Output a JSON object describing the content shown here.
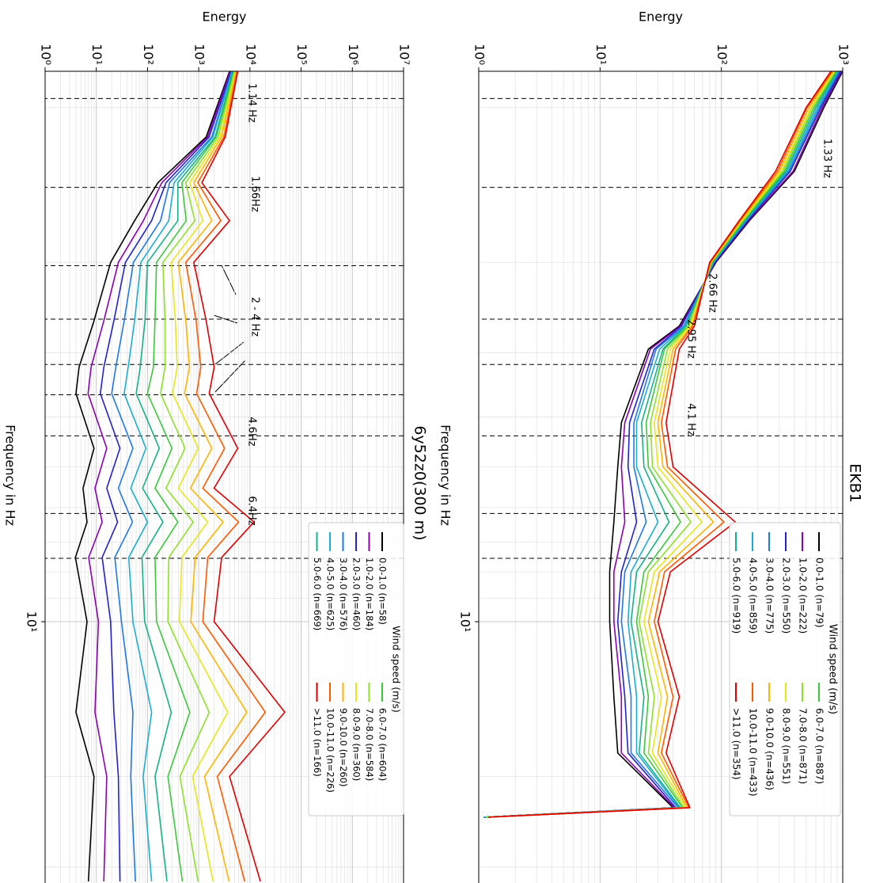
{
  "chart_data": [
    {
      "type": "line",
      "title": "EKB1",
      "xlabel": "Frequency in Hz",
      "ylabel": "Energy",
      "xscale": "log",
      "yscale": "log",
      "xlim": [
        0.85,
        32
      ],
      "ylim": [
        1,
        1000
      ],
      "xticks": [
        {
          "value": 10,
          "label": "10¹"
        }
      ],
      "yticks": [
        {
          "value": 1,
          "label": "10⁰"
        },
        {
          "value": 10,
          "label": "10¹"
        },
        {
          "value": 100,
          "label": "10²"
        },
        {
          "value": 1000,
          "label": "10³"
        }
      ],
      "xminor": [
        1,
        2,
        3,
        4,
        5,
        6,
        7,
        8,
        9,
        20,
        30
      ],
      "yminor": [
        2,
        3,
        4,
        5,
        6,
        7,
        8,
        9,
        20,
        30,
        40,
        50,
        60,
        70,
        80,
        90,
        200,
        300,
        400,
        500,
        600,
        700,
        800,
        900
      ],
      "grid": true,
      "vlines": [
        0.96,
        1.43,
        2.58,
        3.16,
        4.35,
        6.16,
        7.53
      ],
      "annotations": [
        "1.33 Hz",
        "2.66 Hz",
        "2.95 Hz",
        "4.1 Hz"
      ],
      "legend_title": "Wind speed (m/s)",
      "legend_loc": "upper right",
      "x": [
        0.85,
        1,
        1.33,
        1.66,
        2,
        2.66,
        2.95,
        4.1,
        5,
        6.4,
        8,
        10,
        14,
        18,
        23,
        24
      ],
      "series": [
        {
          "name": "0.0-1.0 (n=79)",
          "color": "#000000",
          "values": [
            1000,
            700,
            400,
            170,
            90,
            45,
            25,
            15,
            14,
            13,
            12,
            12,
            13,
            14,
            40,
            1.1
          ]
        },
        {
          "name": "1.0-2.0 (n=222)",
          "color": "#8b00b0",
          "values": [
            980,
            680,
            390,
            167,
            89,
            46,
            26,
            16,
            15,
            16,
            13,
            13,
            15,
            15,
            41,
            1.1
          ]
        },
        {
          "name": "2.0-3.0 (n=550)",
          "color": "#2222c8",
          "values": [
            960,
            660,
            370,
            164,
            88,
            47,
            28,
            17.5,
            17,
            20,
            15,
            14,
            16,
            17,
            42,
            1.1
          ]
        },
        {
          "name": "3.0-4.0 (n=775)",
          "color": "#1e78e6",
          "values": [
            940,
            640,
            360,
            161,
            87,
            49,
            29,
            19,
            19,
            24,
            16,
            15,
            18,
            18,
            44,
            1.1
          ]
        },
        {
          "name": "4.0-5.0 (n=859)",
          "color": "#1aaed0",
          "values": [
            920,
            620,
            350,
            158,
            86,
            50,
            31,
            20,
            20,
            30,
            18,
            17,
            20,
            20,
            45,
            1.1
          ]
        },
        {
          "name": "5.0-6.0 (n=919)",
          "color": "#17b08a",
          "values": [
            900,
            600,
            340,
            156,
            85,
            51,
            33,
            22,
            23,
            37,
            20,
            18,
            23,
            21,
            46,
            1.15
          ]
        },
        {
          "name": "6.0-7.0 (n=887)",
          "color": "#3cc83c",
          "values": [
            890,
            580,
            330,
            153,
            84,
            53,
            34,
            24,
            25,
            46,
            23,
            20,
            25,
            23,
            48,
            1.15
          ]
        },
        {
          "name": "7.0-8.0 (n=871)",
          "color": "#8ee02a",
          "values": [
            870,
            560,
            320,
            150,
            83,
            54,
            36,
            26,
            27,
            56,
            25,
            21,
            28,
            25,
            49,
            1.15
          ]
        },
        {
          "name": "8.0-9.0 (n=551)",
          "color": "#e6e61a",
          "values": [
            850,
            550,
            310,
            148,
            82,
            55,
            38,
            28,
            30,
            69,
            28,
            23,
            32,
            27,
            51,
            1.2
          ]
        },
        {
          "name": "9.0-10.0 (n=436)",
          "color": "#ffb400",
          "values": [
            830,
            530,
            300,
            145,
            82,
            57,
            40,
            30,
            33,
            86,
            31,
            25,
            36,
            30,
            52,
            1.2
          ]
        },
        {
          "name": "10.0-11.0 (n=433)",
          "color": "#ff5a00",
          "values": [
            820,
            510,
            290,
            142,
            81,
            58,
            42,
            32,
            36,
            105,
            34,
            28,
            40,
            32,
            54,
            1.2
          ]
        },
        {
          "name": ">11.0 (n=354)",
          "color": "#e00000",
          "values": [
            800,
            500,
            280,
            140,
            80,
            60,
            45,
            35,
            40,
            130,
            38,
            30,
            45,
            35,
            55,
            1.2
          ]
        }
      ]
    },
    {
      "type": "line",
      "title": "6y52z0(300 m)",
      "xlabel": "Frequency in Hz",
      "ylabel": "Energy",
      "xscale": "log",
      "yscale": "log",
      "xlim": [
        0.85,
        32
      ],
      "ylim": [
        1,
        10000000
      ],
      "xticks": [
        {
          "value": 10,
          "label": "10¹"
        }
      ],
      "yticks": [
        {
          "value": 1,
          "label": "10⁰"
        },
        {
          "value": 10,
          "label": "10¹"
        },
        {
          "value": 100,
          "label": "10²"
        },
        {
          "value": 1000,
          "label": "10³"
        },
        {
          "value": 10000,
          "label": "10⁴"
        },
        {
          "value": 100000,
          "label": "10⁵"
        },
        {
          "value": 1000000,
          "label": "10⁶"
        },
        {
          "value": 10000000,
          "label": "10⁷"
        }
      ],
      "xminor": [
        1,
        2,
        3,
        4,
        5,
        6,
        7,
        8,
        9,
        20,
        30
      ],
      "yminor": [
        2,
        3,
        4,
        5,
        6,
        7,
        8,
        9,
        20,
        30,
        40,
        50,
        60,
        70,
        80,
        90,
        200,
        300,
        400,
        500,
        600,
        700,
        800,
        900,
        2000,
        3000,
        4000,
        5000,
        6000,
        7000,
        8000,
        9000,
        20000,
        30000,
        40000,
        50000,
        60000,
        70000,
        80000,
        90000,
        200000,
        300000,
        400000,
        500000,
        600000,
        700000,
        800000,
        900000,
        2000000,
        3000000,
        4000000,
        5000000,
        6000000,
        7000000,
        8000000,
        9000000
      ],
      "grid": true,
      "vlines": [
        0.96,
        1.43,
        2.03,
        2.58,
        3.16,
        3.62,
        4.35,
        6.16,
        7.53
      ],
      "annotations": [
        "1.14 Hz",
        "1.66Hz",
        "2 - 4 Hz",
        "4.6Hz",
        "6.4Hz"
      ],
      "legend_title": "Wind speed (m/s)",
      "legend_loc": "upper right",
      "x": [
        0.85,
        1.14,
        1.4,
        1.66,
        2,
        2.6,
        3.2,
        3.6,
        4.6,
        5.5,
        6.4,
        7.5,
        10,
        15,
        20,
        32
      ],
      "series": [
        {
          "name": "0.0-1.0 (n=58)",
          "color": "#000000",
          "values": [
            4000,
            1400,
            160,
            56,
            19,
            9,
            4.6,
            4,
            9,
            5.5,
            6.6,
            3.9,
            6.6,
            4,
            9,
            7
          ]
        },
        {
          "name": "1.0-2.0 (n=184)",
          "color": "#8b00b0",
          "values": [
            4100,
            1500,
            190,
            83,
            27,
            14,
            7.9,
            6.9,
            16,
            9.4,
            13,
            7.1,
            11,
            9.4,
            16,
            14
          ]
        },
        {
          "name": "2.0-3.0 (n=460)",
          "color": "#2222c8",
          "values": [
            4300,
            1600,
            230,
            120,
            37,
            22,
            14,
            12,
            29,
            16,
            26,
            13,
            19,
            22,
            27,
            29
          ]
        },
        {
          "name": "3.0-4.0 (n=576)",
          "color": "#1e78e6",
          "values": [
            4400,
            1800,
            270,
            180,
            53,
            35,
            24,
            20,
            52,
            27,
            51,
            23,
            31,
            52,
            47,
            58
          ]
        },
        {
          "name": "4.0-5.0 (n=625)",
          "color": "#1aaed0",
          "values": [
            4500,
            1900,
            330,
            260,
            74,
            56,
            42,
            35,
            93,
            47,
            100,
            43,
            52,
            120,
            82,
            120
          ]
        },
        {
          "name": "5.0-6.0 (n=669)",
          "color": "#17b08a",
          "values": [
            4700,
            2100,
            390,
            390,
            100,
            89,
            72,
            60,
            170,
            80,
            200,
            78,
            88,
            290,
            140,
            240
          ]
        },
        {
          "name": "6.0-7.0 (n=604)",
          "color": "#3cc83c",
          "values": [
            4900,
            2200,
            470,
            570,
            150,
            140,
            130,
            100,
            300,
            140,
            390,
            140,
            150,
            670,
            250,
            480
          ]
        },
        {
          "name": "7.0-8.0 (n=584)",
          "color": "#8ee02a",
          "values": [
            5000,
            2400,
            560,
            840,
            200,
            220,
            220,
            180,
            540,
            230,
            780,
            260,
            250,
            1600,
            430,
            970
          ]
        },
        {
          "name": "8.0-9.0 (n=360)",
          "color": "#e6e61a",
          "values": [
            5200,
            2600,
            670,
            1200,
            290,
            350,
            380,
            310,
            980,
            400,
            1500,
            470,
            420,
            3700,
            760,
            1900
          ]
        },
        {
          "name": "9.0-10.0 (n=260)",
          "color": "#ffb400",
          "values": [
            5400,
            2800,
            800,
            1800,
            400,
            560,
            660,
            530,
            1800,
            690,
            3000,
            850,
            700,
            8700,
            1300,
            3900
          ]
        },
        {
          "name": "10.0-11.0 (n=226)",
          "color": "#ff5a00",
          "values": [
            5600,
            3100,
            960,
            2700,
            560,
            890,
            1100,
            910,
            3200,
            1200,
            6000,
            1500,
            1200,
            20000,
            2300,
            7900
          ]
        },
        {
          "name": ">11.0 (n=166)",
          "color": "#e00000",
          "values": [
            5800,
            3300,
            1150,
            4000,
            800,
            1400,
            2000,
            1600,
            5800,
            2000,
            12000,
            2800,
            2000,
            48000,
            4000,
            16000
          ]
        }
      ]
    }
  ]
}
